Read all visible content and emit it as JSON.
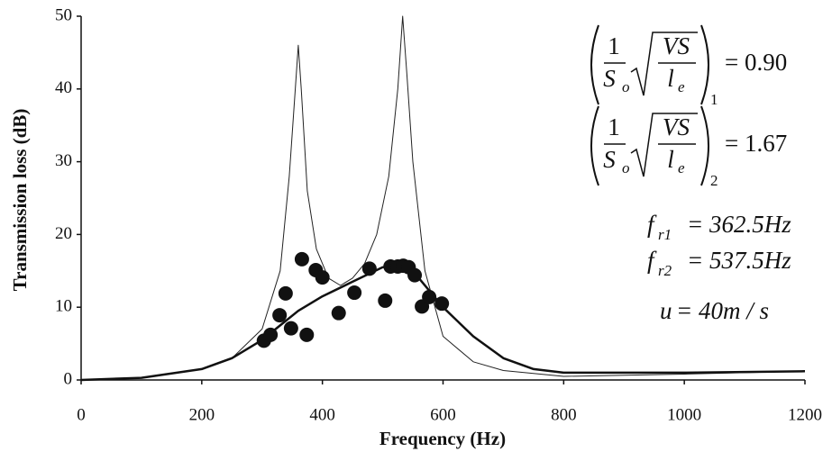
{
  "chart_data": {
    "type": "line",
    "x_label": "Frequency (Hz)",
    "y_label": "Transmission loss (dB)",
    "xlim": [
      0,
      1200
    ],
    "xticks": [
      0,
      200,
      400,
      600,
      800,
      1000,
      1200
    ],
    "ylim": [
      0,
      50
    ],
    "yticks": [
      0,
      10,
      20,
      30,
      40,
      50
    ],
    "series": [
      {
        "type": "line",
        "color": "#222222",
        "line_width": 1,
        "x": [
          0,
          100,
          200,
          250,
          300,
          330,
          345,
          355,
          360,
          365,
          375,
          390,
          410,
          430,
          450,
          470,
          490,
          510,
          525,
          533,
          540,
          550,
          570,
          600,
          650,
          700,
          800,
          1000,
          1200
        ],
        "values": [
          0,
          0.3,
          1.5,
          3,
          7,
          15,
          28,
          40,
          46,
          40,
          26,
          18,
          14,
          13,
          14,
          16,
          20,
          28,
          40,
          50,
          42,
          30,
          15,
          6,
          2.5,
          1.3,
          0.5,
          0.8,
          1.2
        ]
      },
      {
        "type": "line",
        "color": "#111111",
        "line_width": 2.5,
        "x": [
          0,
          100,
          200,
          250,
          300,
          330,
          360,
          400,
          450,
          500,
          530,
          560,
          600,
          650,
          700,
          750,
          800,
          900,
          1000,
          1200
        ],
        "values": [
          0,
          0.3,
          1.5,
          3,
          5.5,
          7.5,
          9.5,
          11.5,
          13.5,
          15.5,
          16,
          14,
          10,
          6,
          3,
          1.5,
          1,
          1,
          1,
          1.2
        ]
      },
      {
        "type": "scatter",
        "color": "#111111",
        "x": [
          303,
          314,
          329,
          339,
          366,
          348,
          374,
          389,
          400,
          427,
          453,
          478,
          504,
          513,
          525,
          534,
          543,
          553,
          565,
          577,
          598
        ],
        "values": [
          5.4,
          6.2,
          8.9,
          11.9,
          16.6,
          7.1,
          6.2,
          15.1,
          14.1,
          9.2,
          12.0,
          15.3,
          10.9,
          15.6,
          15.6,
          15.7,
          15.5,
          14.4,
          10.1,
          11.4,
          10.5
        ]
      }
    ],
    "annotations": [
      {
        "frac_num": "1",
        "frac_den": "S",
        "frac_den_sub": "o",
        "root_num": "VS",
        "root_den": "l",
        "root_den_sub": "e",
        "subscript": "1",
        "rhs": "= 0.90"
      },
      {
        "frac_num": "1",
        "frac_den": "S",
        "frac_den_sub": "o",
        "root_num": "VS",
        "root_den": "l",
        "root_den_sub": "e",
        "subscript": "2",
        "rhs": "= 1.67"
      },
      {
        "lhs": "f",
        "lhs_sub": "r1",
        "rhs": "= 362.5Hz"
      },
      {
        "lhs": "f",
        "lhs_sub": "r2",
        "rhs": "= 537.5Hz"
      },
      {
        "lhs": "u",
        "rhs": "= 40m / s"
      }
    ]
  }
}
